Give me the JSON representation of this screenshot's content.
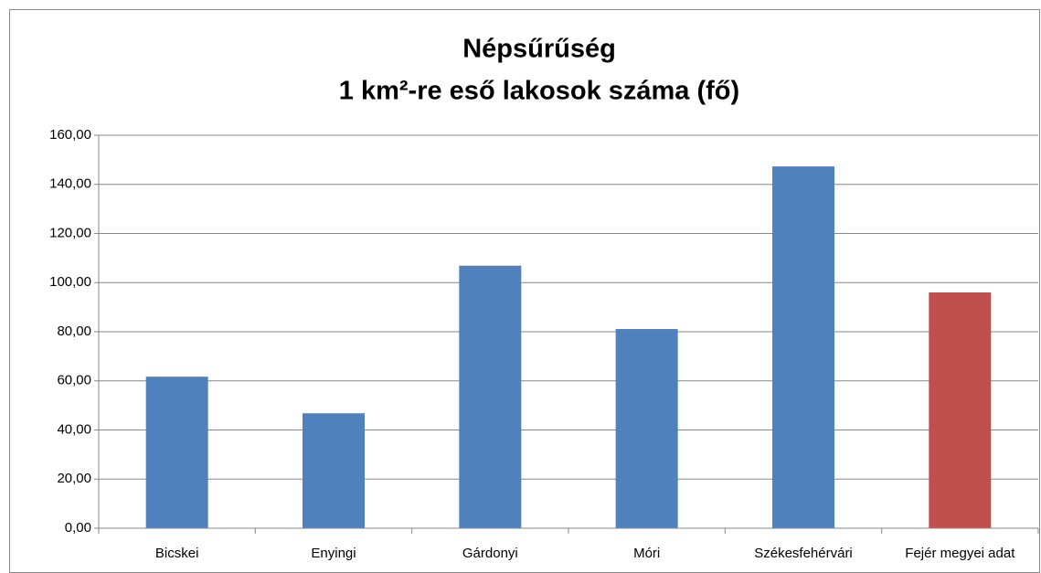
{
  "chart_data": {
    "type": "bar",
    "title": [
      "Népsűrűség",
      "1 km²-re eső lakosok száma (fő)"
    ],
    "categories": [
      "Bicskei",
      "Enyingi",
      "Gárdonyi",
      "Móri",
      "Székesfehérvári",
      "Fejér megyei adat"
    ],
    "values": [
      61.7,
      46.8,
      106.9,
      81.1,
      147.3,
      96.0
    ],
    "colors": [
      "#4f81bd",
      "#4f81bd",
      "#4f81bd",
      "#4f81bd",
      "#4f81bd",
      "#c0504d"
    ],
    "ylim": [
      0,
      160
    ],
    "yticks": [
      {
        "value": 0,
        "label": "0,00"
      },
      {
        "value": 20,
        "label": "20,00"
      },
      {
        "value": 40,
        "label": "40,00"
      },
      {
        "value": 60,
        "label": "60,00"
      },
      {
        "value": 80,
        "label": "80,00"
      },
      {
        "value": 100,
        "label": "100,00"
      },
      {
        "value": 120,
        "label": "120,00"
      },
      {
        "value": 140,
        "label": "140,00"
      },
      {
        "value": 160,
        "label": "160,00"
      }
    ],
    "grid": true
  }
}
